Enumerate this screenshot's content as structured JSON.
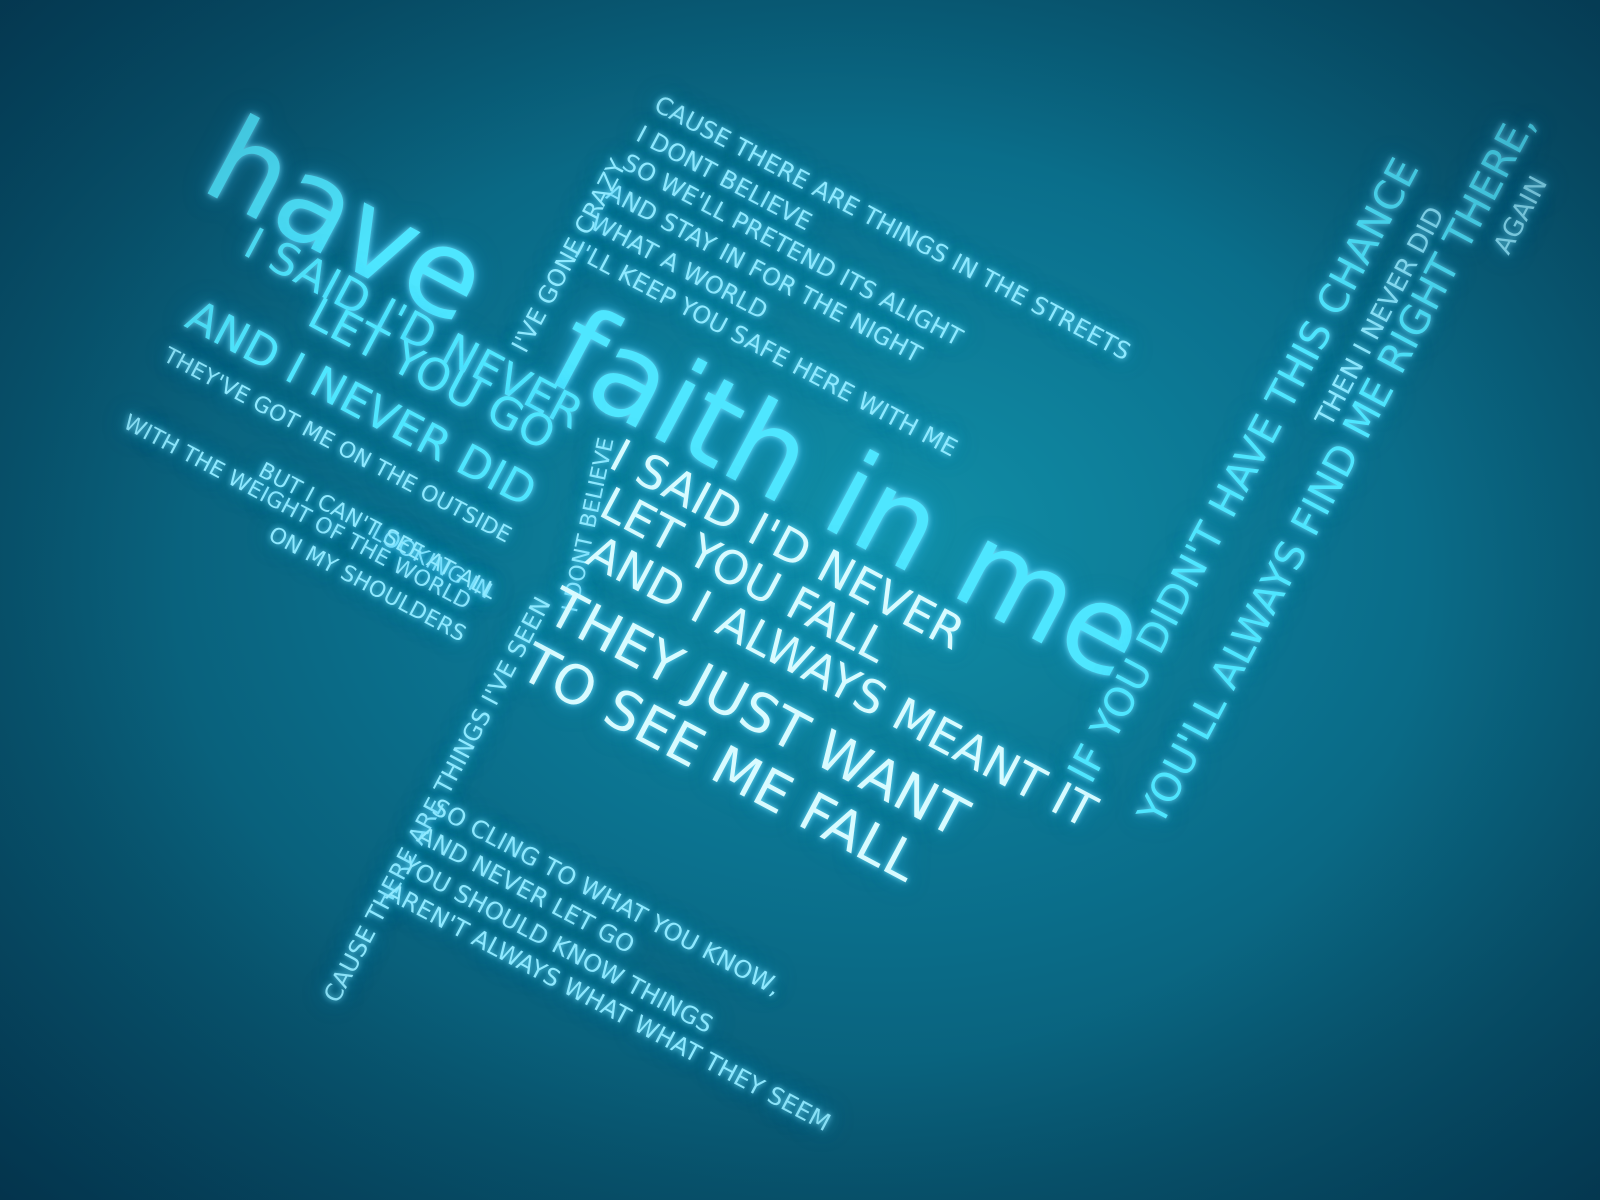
{
  "lyrics": {
    "title_have": "have",
    "title_faith": "faith in me",
    "block_left": [
      "I SAID I'D NEVER",
      "LET YOU GO",
      "AND I NEVER DID",
      "THEY'VE GOT ME ON THE OUTSIDE",
      "LOOKING IN",
      "WITH THE WEIGHT OF THE WORLD",
      "ON MY SHOULDERS",
      "BUT I CAN'T SEE AT ALL"
    ],
    "block_center": [
      "I SAID I'D NEVER",
      "LET YOU FALL",
      "AND I ALWAYS MEANT IT"
    ],
    "block_fall": [
      "THEY JUST WANT",
      "TO SEE ME FALL"
    ],
    "block_top": [
      "CAUSE THERE ARE THINGS IN THE STREETS",
      "I DONT BELIEVE",
      "SO WE'LL PRETEND ITS ALIGHT",
      "AND STAY IN FOR THE NIGHT",
      "WHAT A WORLD",
      "I'LL KEEP YOU SAFE HERE WITH ME"
    ],
    "vertical_crazy": [
      "I'VE GONE CRAZY",
      "I DONT BELIEVE",
      "I'VE SEEN"
    ],
    "block_bottom": [
      "SO CLING TO WHAT YOU KNOW,",
      "AND NEVER LET GO",
      "YOU SHOULD KNOW THINGS",
      "AREN'T ALWAYS WHAT WHAT THEY SEEM"
    ],
    "vertical_bottom": "CAUSE THERE ARE THINGS I'VE SEEN",
    "block_right": [
      "IF YOU DIDN'T HAVE THIS CHANCE",
      "THEN I NEVER DID",
      "YOU'LL ALWAYS FIND ME RIGHT THERE,",
      "AGAIN"
    ]
  },
  "colors": {
    "background": "#0b7390",
    "text_cyan": "#4ee6ff",
    "text_bright": "#d8fbff"
  }
}
